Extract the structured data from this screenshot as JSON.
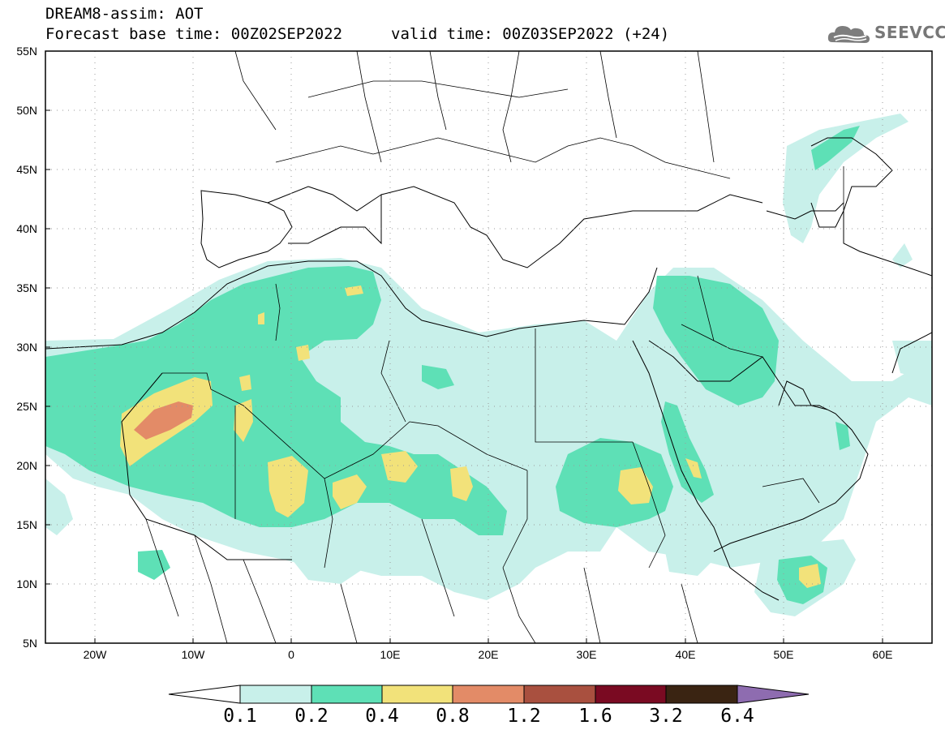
{
  "header": {
    "title": "DREAM8-assim: AOT",
    "base_time": "Forecast base time: 00Z02SEP2022",
    "valid_time": "valid time: 00Z03SEP2022 (+24)"
  },
  "logo": {
    "text": "SEEVCCC",
    "icon": "cloud-icon"
  },
  "map": {
    "lat_labels": [
      "55N",
      "50N",
      "45N",
      "40N",
      "35N",
      "30N",
      "25N",
      "20N",
      "15N",
      "10N",
      "5N"
    ],
    "lon_labels": [
      "20W",
      "10W",
      "0",
      "10E",
      "20E",
      "30E",
      "40E",
      "50E",
      "60E"
    ],
    "extent": {
      "lon": [
        -25,
        65
      ],
      "lat": [
        5,
        55
      ]
    }
  },
  "colorbar": {
    "labels": [
      "0.1",
      "0.2",
      "0.4",
      "0.8",
      "1.2",
      "1.6",
      "3.2",
      "6.4"
    ],
    "colors": [
      "#c8f0ea",
      "#5ee0b6",
      "#f2e27a",
      "#e38b67",
      "#a9503f",
      "#7a0a22",
      "#3a2412",
      "#8e6cb0"
    ]
  },
  "chart_data": {
    "type": "heatmap",
    "title": "DREAM8-assim: AOT",
    "levels": [
      0.1,
      0.2,
      0.4,
      0.8,
      1.2,
      1.6,
      3.2,
      6.4
    ],
    "xlim": [
      -25,
      65
    ],
    "ylim": [
      5,
      55
    ]
  }
}
